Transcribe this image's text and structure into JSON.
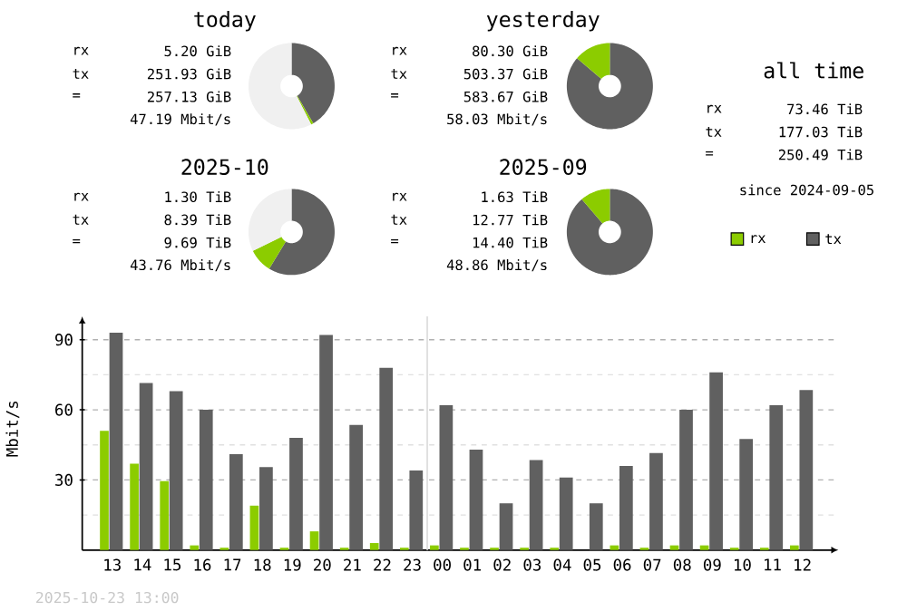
{
  "chart_data": [
    {
      "type": "donut",
      "title": "today",
      "categories": [
        null,
        null,
        null
      ],
      "values": [
        41.6,
        0.9,
        57.5
      ],
      "colors": [
        "#606060",
        "#8ccc00",
        "#f0f0f0"
      ],
      "annotations": [
        "rx",
        "5.20 GiB",
        "tx",
        "251.93 GiB",
        "=",
        "257.13 GiB",
        "47.19 Mbit/s"
      ]
    },
    {
      "type": "donut",
      "title": "yesterday",
      "categories": [
        null,
        null
      ],
      "values": [
        86.2,
        13.8
      ],
      "colors": [
        "#606060",
        "#8ccc00"
      ],
      "annotations": [
        "rx",
        "80.30 GiB",
        "tx",
        "503.37 GiB",
        "=",
        "583.67 GiB",
        "58.03 Mbit/s"
      ]
    },
    {
      "type": "other",
      "title": "all time",
      "annotations": [
        "rx",
        "73.46 TiB",
        "tx",
        "177.03 TiB",
        "=",
        "250.49 TiB",
        "since 2024-09-05"
      ]
    },
    {
      "type": "donut",
      "title": "2025-10",
      "categories": [
        null,
        null,
        null
      ],
      "values": [
        58.7,
        9.1,
        32.2
      ],
      "colors": [
        "#606060",
        "#8ccc00",
        "#f0f0f0"
      ],
      "annotations": [
        "rx",
        "1.30 TiB",
        "tx",
        "8.39 TiB",
        "=",
        "9.69 TiB",
        "43.76 Mbit/s"
      ]
    },
    {
      "type": "donut",
      "title": "2025-09",
      "categories": [
        null,
        null
      ],
      "values": [
        88.7,
        11.3
      ],
      "colors": [
        "#606060",
        "#8ccc00"
      ],
      "annotations": [
        "rx",
        "1.63 TiB",
        "tx",
        "12.77 TiB",
        "=",
        "14.40 TiB",
        "48.86 Mbit/s"
      ]
    },
    {
      "type": "bar",
      "ylabel": "Mbit/s",
      "categories": [
        "13",
        "14",
        "15",
        "16",
        "17",
        "18",
        "19",
        "20",
        "21",
        "22",
        "23",
        "00",
        "01",
        "02",
        "03",
        "04",
        "05",
        "06",
        "07",
        "08",
        "09",
        "10",
        "11",
        "12"
      ],
      "series": [
        {
          "name": "rx",
          "color": "#8ccc00",
          "values": [
            51,
            37,
            29.5,
            2,
            1,
            19,
            1,
            8,
            1,
            3,
            1,
            2,
            1,
            1,
            1,
            1,
            0,
            2,
            1,
            2,
            2,
            1,
            1,
            2
          ]
        },
        {
          "name": "tx",
          "color": "#606060",
          "values": [
            93,
            71.5,
            68,
            60,
            41,
            35.5,
            48,
            92,
            53.5,
            78,
            34,
            62,
            43,
            20,
            38.5,
            31,
            20,
            36,
            41.5,
            60,
            76,
            47.5,
            62,
            68.5
          ]
        }
      ],
      "ylim": [
        0,
        100
      ],
      "yticks": [
        {
          "value": 15,
          "label": null
        },
        30,
        {
          "value": 45,
          "label": null
        },
        60,
        {
          "value": 75,
          "label": null
        },
        90
      ],
      "grid": "y",
      "legend": "top right",
      "ref_lines": [
        {
          "axis": "x",
          "value": "00",
          "color": "#e0e0e0"
        }
      ],
      "annotations": [
        "2025-10-23 13:00"
      ]
    }
  ]
}
